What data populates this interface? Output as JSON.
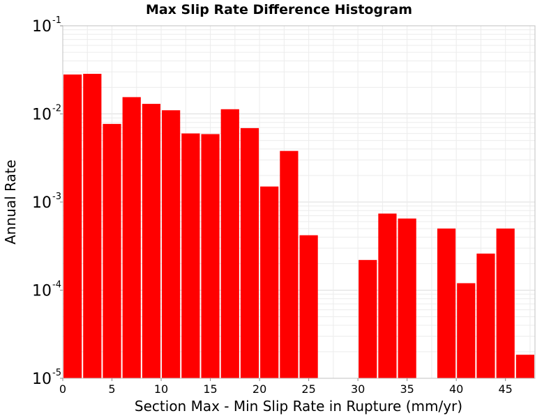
{
  "chart_data": {
    "type": "bar",
    "title": "Max Slip Rate Difference Histogram",
    "xlabel": "Section Max - Min Slip Rate in Rupture (mm/yr)",
    "ylabel": "Annual Rate",
    "xlim": [
      0,
      48
    ],
    "ylim": [
      1e-05,
      0.1
    ],
    "yscale": "log",
    "bin_width": 2,
    "x_ticks": [
      0,
      5,
      10,
      15,
      20,
      25,
      30,
      35,
      40,
      45
    ],
    "y_ticks": [
      {
        "base": "10",
        "exp": "-5",
        "value": 1e-05
      },
      {
        "base": "10",
        "exp": "-4",
        "value": 0.0001
      },
      {
        "base": "10",
        "exp": "-3",
        "value": 0.001
      },
      {
        "base": "10",
        "exp": "-2",
        "value": 0.01
      },
      {
        "base": "10",
        "exp": "-1",
        "value": 0.1
      }
    ],
    "bar_color": "#ff0000",
    "grid": true,
    "bars": [
      {
        "x": 1,
        "y": 0.028
      },
      {
        "x": 3,
        "y": 0.0285
      },
      {
        "x": 5,
        "y": 0.0077
      },
      {
        "x": 7,
        "y": 0.0155
      },
      {
        "x": 9,
        "y": 0.013
      },
      {
        "x": 11,
        "y": 0.011
      },
      {
        "x": 13,
        "y": 0.006
      },
      {
        "x": 15,
        "y": 0.0059
      },
      {
        "x": 17,
        "y": 0.0113
      },
      {
        "x": 19,
        "y": 0.0069
      },
      {
        "x": 21,
        "y": 0.0015
      },
      {
        "x": 23,
        "y": 0.0038
      },
      {
        "x": 25,
        "y": 0.00042
      },
      {
        "x": 31,
        "y": 0.00022
      },
      {
        "x": 33,
        "y": 0.00074
      },
      {
        "x": 35,
        "y": 0.00065
      },
      {
        "x": 39,
        "y": 0.0005
      },
      {
        "x": 41,
        "y": 0.00012
      },
      {
        "x": 43,
        "y": 0.00026
      },
      {
        "x": 45,
        "y": 0.0005
      },
      {
        "x": 47,
        "y": 1.85e-05
      }
    ]
  }
}
